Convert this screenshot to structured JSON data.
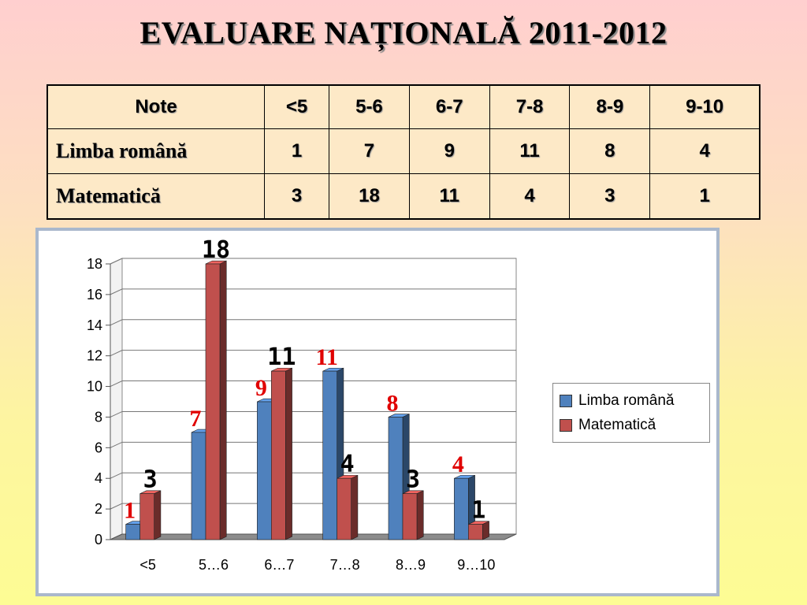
{
  "title": "EVALUARE NAȚIONALĂ 2011-2012",
  "table": {
    "headers": [
      "Note",
      "<5",
      "5-6",
      "6-7",
      "7-8",
      "8-9",
      "9-10"
    ],
    "rows": [
      {
        "label": "Limba română",
        "values": [
          "1",
          "7",
          "9",
          "11",
          "8",
          "4"
        ]
      },
      {
        "label": "Matematică",
        "values": [
          "3",
          "18",
          "11",
          "4",
          "3",
          "1"
        ]
      }
    ]
  },
  "chart_data": {
    "type": "bar",
    "categories": [
      "<5",
      "5…6",
      "6…7",
      "7…8",
      "8…9",
      "9…10"
    ],
    "series": [
      {
        "name": "Limba română",
        "values": [
          1,
          7,
          9,
          11,
          8,
          4
        ],
        "color": "#4f81bd"
      },
      {
        "name": "Matematică",
        "values": [
          3,
          18,
          11,
          4,
          3,
          1
        ],
        "color": "#c0504d"
      }
    ],
    "ylim": [
      0,
      18
    ],
    "yticks": [
      0,
      2,
      4,
      6,
      8,
      10,
      12,
      14,
      16,
      18
    ],
    "grid": true,
    "legend": "right",
    "data_label_colors": {
      "Limba română": "#e00000",
      "Matematică": "#000000"
    }
  }
}
